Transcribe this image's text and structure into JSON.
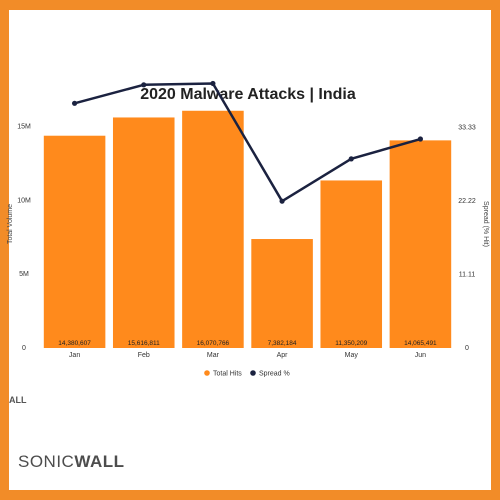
{
  "colors": {
    "frame": "#f28c28",
    "bar": "#ff8a1c",
    "line": "#1b2240"
  },
  "brand": {
    "text_a": "SONIC",
    "text_b": "WALL",
    "small": "ALL"
  },
  "chart_data": {
    "type": "bar",
    "title": "2020 Malware Attacks | India",
    "categories": [
      "Jan",
      "Feb",
      "Mar",
      "Apr",
      "May",
      "Jun"
    ],
    "series": [
      {
        "name": "Total Hits",
        "kind": "bar",
        "axis": "left",
        "values": [
          14380607,
          15616811,
          16070766,
          7382184,
          11350209,
          14065491
        ],
        "labels": [
          "14,380,607",
          "15,616,811",
          "16,070,766",
          "7,382,184",
          "11,350,209",
          "14,065,491"
        ]
      },
      {
        "name": "Spread %",
        "kind": "line",
        "axis": "right",
        "values": [
          37,
          39.8,
          40,
          22.2,
          28.6,
          31.6
        ]
      }
    ],
    "ylabel": "Total Volume",
    "y2label": "Spread (% Hit)",
    "ylim": [
      0,
      16800000
    ],
    "y2lim": [
      0,
      37.5
    ],
    "yticks": [
      0,
      5000000,
      10000000,
      15000000
    ],
    "ytick_labels": [
      "0",
      "5M",
      "10M",
      "15M"
    ],
    "y2ticks": [
      0,
      11.11,
      22.22,
      33.33
    ],
    "y2tick_labels": [
      "0",
      "11.11",
      "22.22",
      "33.33"
    ],
    "legend_position": "bottom"
  }
}
